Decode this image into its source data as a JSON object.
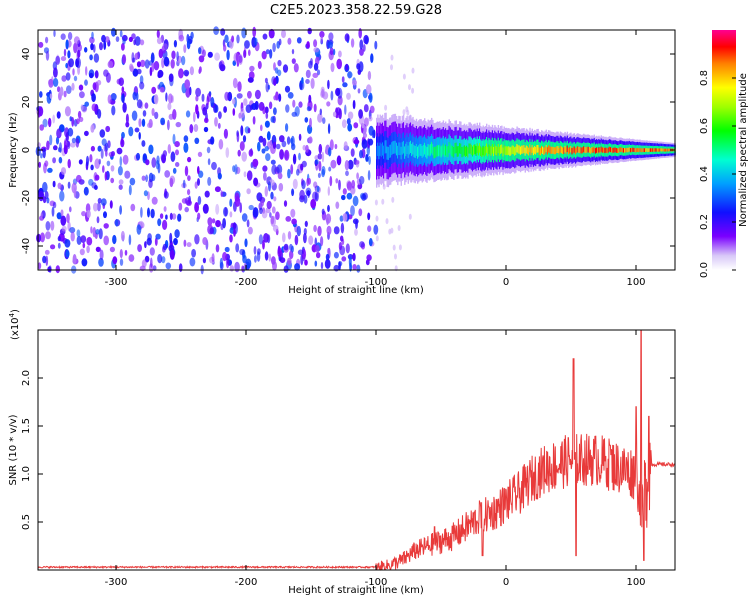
{
  "title": "C2E5.2023.358.22.59.G28",
  "chart_data": [
    {
      "type": "heatmap",
      "xlabel": "Height of straight line (km)",
      "ylabel": "Frequency (Hz)",
      "xlim": [
        -360,
        130
      ],
      "ylim": [
        -50,
        50
      ],
      "x_ticks": [
        -300,
        -200,
        -100,
        0,
        100
      ],
      "y_ticks": [
        40,
        20,
        0,
        -20,
        -40
      ],
      "colorbar": {
        "label": "Normalized spectral amplitude",
        "range": [
          0.0,
          1.0
        ],
        "ticks": [
          "0.0",
          "0.2",
          "0.4",
          "0.6",
          "0.8"
        ]
      },
      "signal_band": {
        "x_start": -100,
        "x_end": 130,
        "center_frequency": 0,
        "peak_amplitude": 0.9
      },
      "noise_region": {
        "x_start": -360,
        "x_end": -100,
        "typical_amplitude": 0.25
      }
    },
    {
      "type": "line",
      "xlabel": "Height of straight line (km)",
      "ylabel": "SNR (10 * v/v)",
      "y_scale_label": "(x10",
      "y_scale_exponent": "4",
      "y_scale_suffix": ")",
      "xlim": [
        -360,
        130
      ],
      "ylim": [
        0,
        2.5
      ],
      "x_ticks": [
        -300,
        -200,
        -100,
        0,
        100
      ],
      "y_ticks": [
        0.5,
        1.0,
        1.5,
        2.0
      ],
      "y_tick_labels": [
        "0.5",
        "1.0",
        "1.5",
        "2.0"
      ],
      "color": "#e83a3a",
      "series": [
        {
          "x": [
            -360,
            -300,
            -200,
            -100,
            -90,
            -80,
            -70,
            -60,
            -50,
            -40,
            -30,
            -20,
            -10,
            0,
            10,
            20,
            30,
            40,
            50,
            60,
            70,
            80,
            90,
            100,
            105,
            110,
            120,
            130
          ],
          "y": [
            0.03,
            0.03,
            0.03,
            0.03,
            0.05,
            0.1,
            0.2,
            0.25,
            0.3,
            0.35,
            0.45,
            0.55,
            0.6,
            0.7,
            0.8,
            0.95,
            1.05,
            1.1,
            1.15,
            1.15,
            1.15,
            1.1,
            1.05,
            1.0,
            0.6,
            1.1,
            1.1,
            1.1
          ],
          "spikes": [
            {
              "x": -55,
              "y": 0.45
            },
            {
              "x": -20,
              "y": 0.7
            },
            {
              "x": -18,
              "y": 0.15
            },
            {
              "x": 52,
              "y": 2.2
            },
            {
              "x": 54,
              "y": 0.15
            },
            {
              "x": 80,
              "y": 1.3
            },
            {
              "x": 100,
              "y": 1.7
            },
            {
              "x": 104,
              "y": 2.5
            },
            {
              "x": 106,
              "y": 0.1
            },
            {
              "x": 110,
              "y": 1.6
            }
          ]
        }
      ]
    }
  ]
}
